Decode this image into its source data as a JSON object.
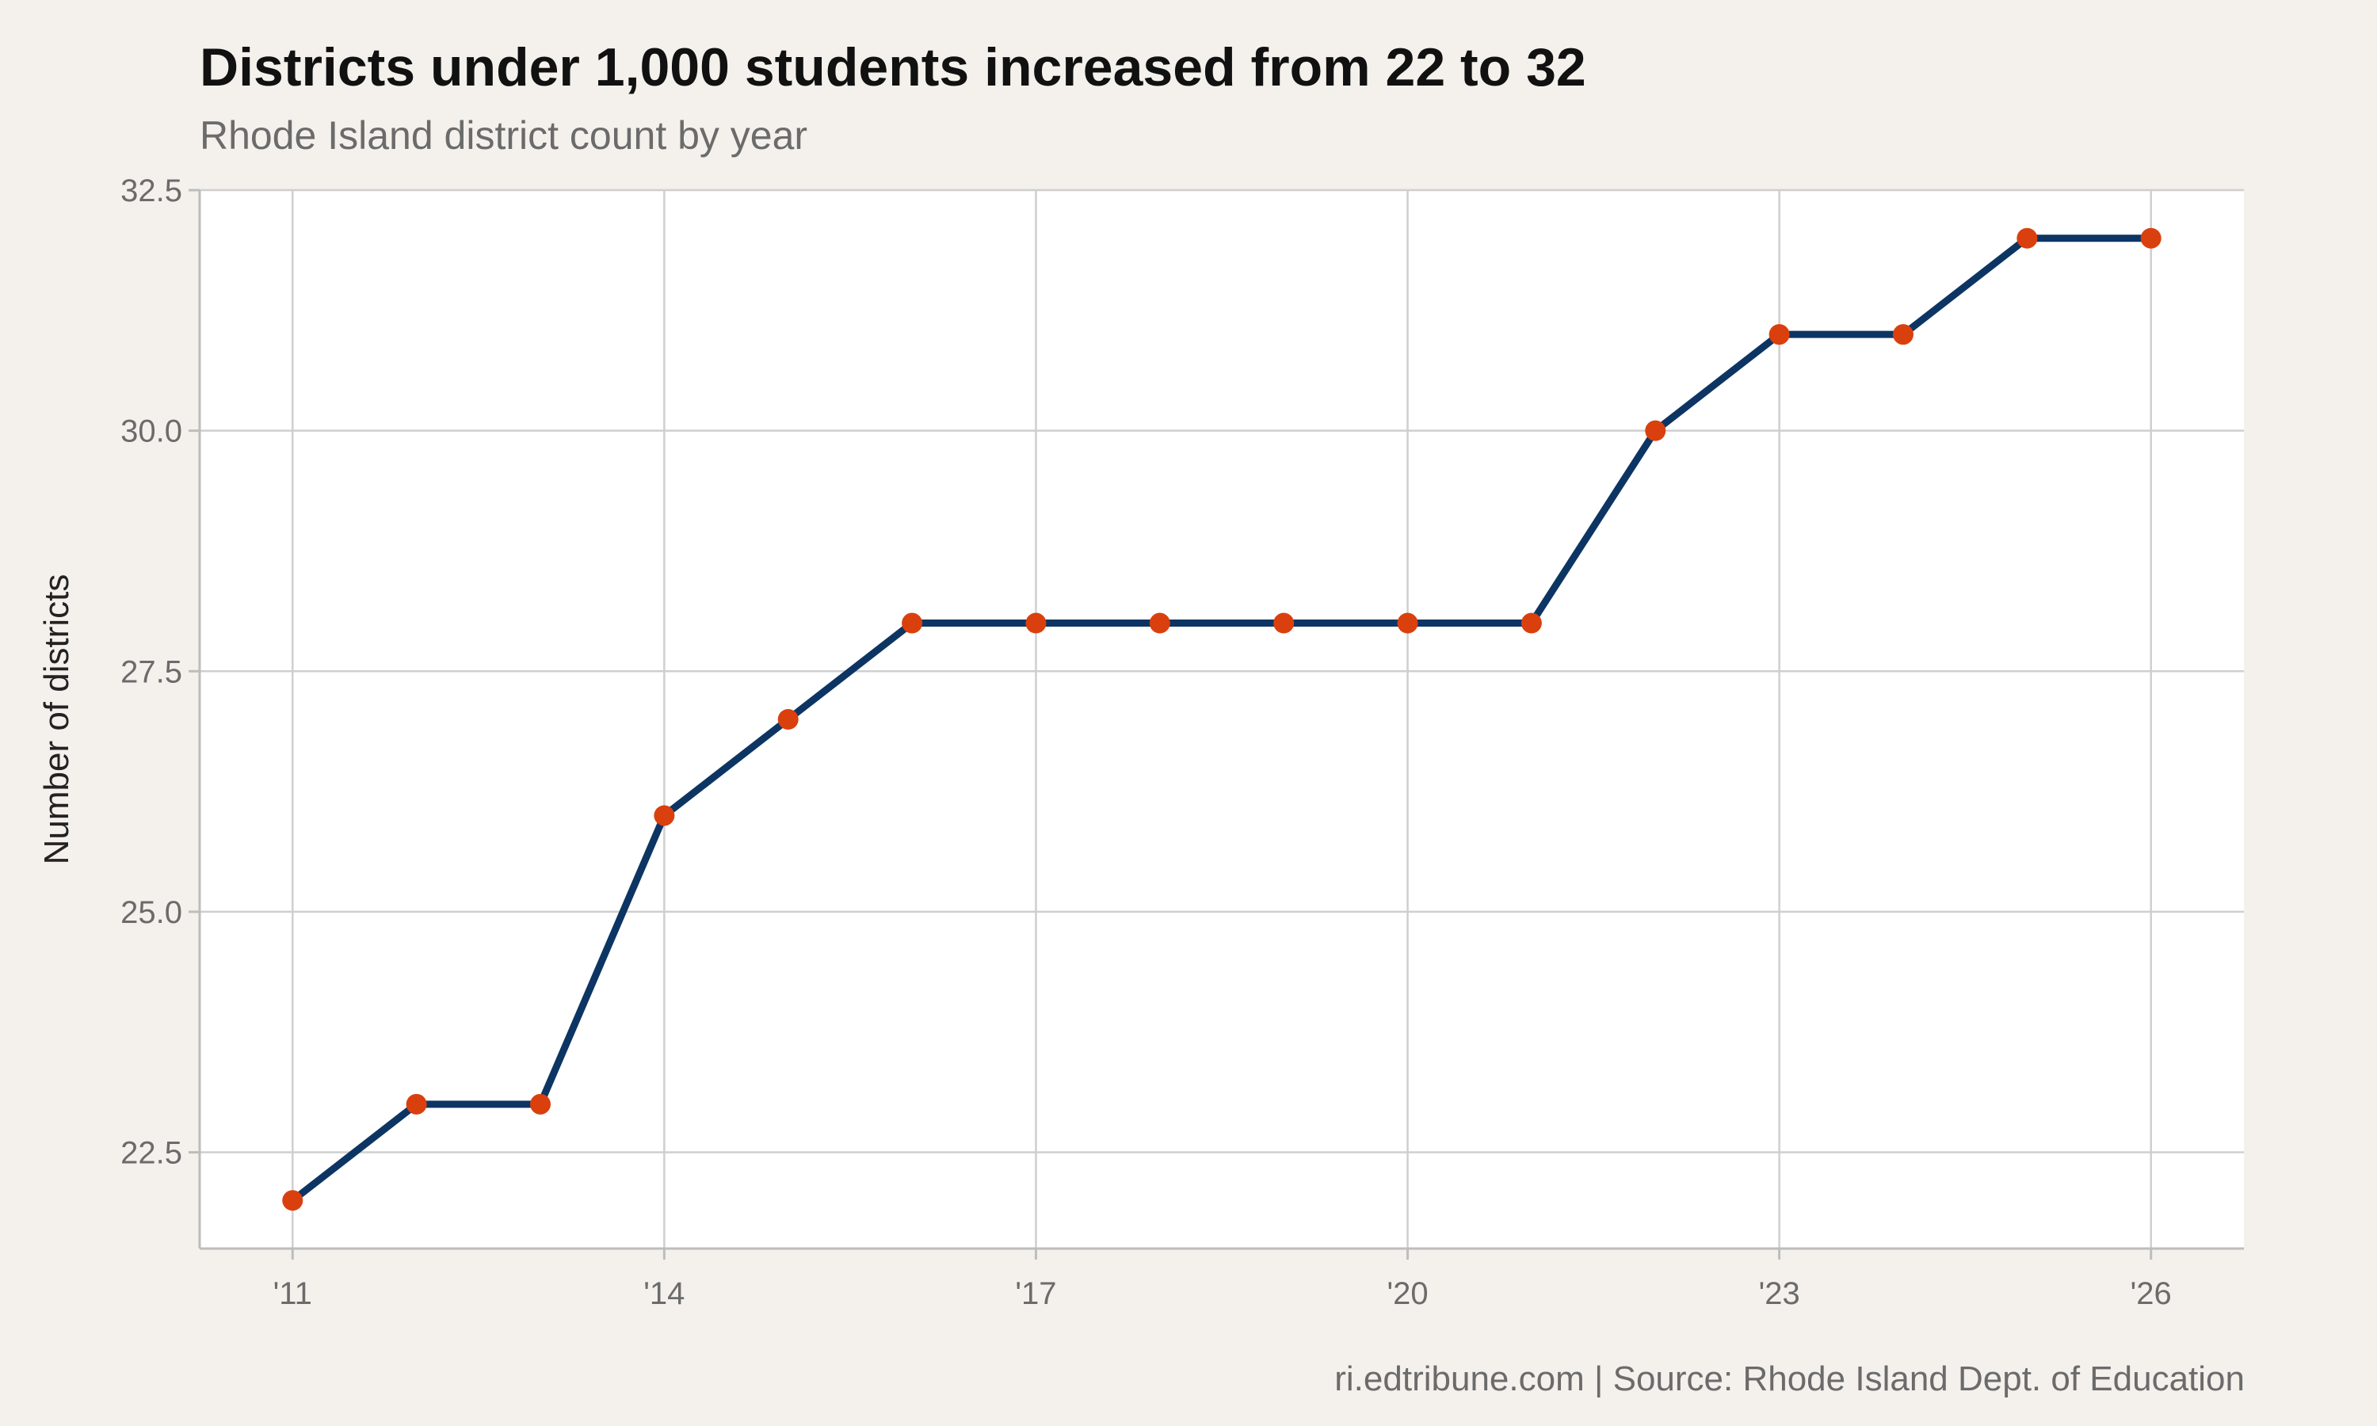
{
  "header": {
    "title": "Districts under 1,000 students increased from 22 to 32",
    "subtitle": "Rhode Island district count by year"
  },
  "footer": {
    "caption": "ri.edtribune.com | Source: Rhode Island Dept. of Education"
  },
  "colors": {
    "background": "#f4f1ec",
    "panel": "#ffffff",
    "grid": "#cfcfcf",
    "line": "#0d3563",
    "point": "#d9400e"
  },
  "chart_data": {
    "type": "line",
    "title": "Districts under 1,000 students increased from 22 to 32",
    "subtitle": "Rhode Island district count by year",
    "xlabel": "",
    "ylabel": "Number of districts",
    "x": [
      2011,
      2012,
      2013,
      2014,
      2015,
      2016,
      2017,
      2018,
      2019,
      2020,
      2021,
      2022,
      2023,
      2024,
      2025,
      2026
    ],
    "series": [
      {
        "values": [
          22,
          23,
          23,
          26,
          27,
          28,
          28,
          28,
          28,
          28,
          28,
          30,
          31,
          31,
          32,
          32
        ]
      }
    ],
    "x_ticks": [
      2011,
      2014,
      2017,
      2020,
      2023,
      2026
    ],
    "x_tick_labels": [
      "'11",
      "'14",
      "'17",
      "'20",
      "'23",
      "'26"
    ],
    "y_ticks": [
      22.5,
      25.0,
      27.5,
      30.0,
      32.5
    ],
    "y_tick_labels": [
      "22.5",
      "25.0",
      "27.5",
      "30.0",
      "32.5"
    ],
    "xlim": [
      2010.25,
      2026.75
    ],
    "ylim": [
      21.5,
      32.5
    ],
    "grid": true,
    "legend": "none",
    "markers": true
  }
}
